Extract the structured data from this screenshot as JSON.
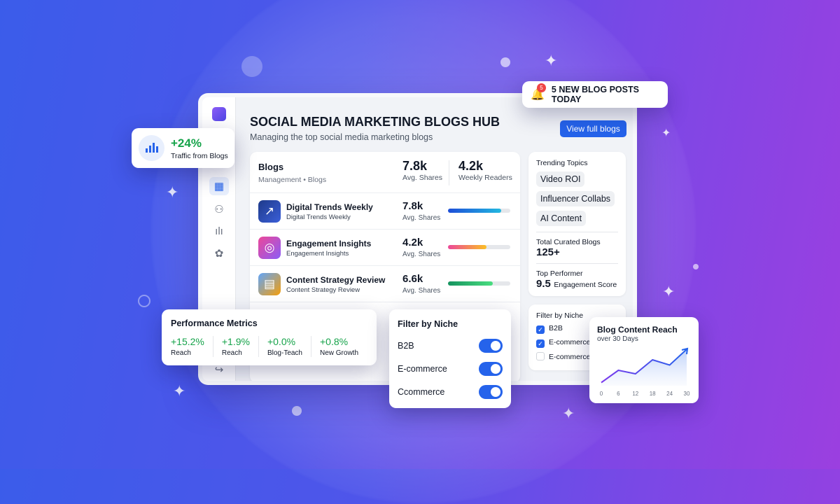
{
  "colors": {
    "accent": "#2563eb",
    "positive": "#16a34a",
    "badge": "#ef4444"
  },
  "notification": {
    "icon": "bell-icon",
    "badge": "5",
    "text": "5 NEW BLOG POSTS TODAY"
  },
  "traffic": {
    "icon": "bar-chart-icon",
    "value": "+24%",
    "label": "Traffic from Blogs"
  },
  "sidebar": {
    "items": [
      {
        "icon": "grid-icon",
        "active": true
      },
      {
        "icon": "users-icon"
      },
      {
        "icon": "chart-icon"
      },
      {
        "icon": "settings-icon"
      }
    ]
  },
  "header": {
    "title": "SOCIAL MEDIA MARKETING BLOGS HUB",
    "subtitle": "Managing the top social media marketing blogs",
    "button": "View full blogs"
  },
  "blogs": {
    "title": "Blogs",
    "breadcrumb": "Management • Blogs",
    "stats": [
      {
        "value": "7.8k",
        "label": "Avg. Shares"
      },
      {
        "value": "4.2k",
        "label": "Weekly Readers"
      }
    ],
    "rows": [
      {
        "name": "Digital Trends Weekly",
        "sub": "Digital Trends Weekly",
        "value": "7.8k",
        "label": "Avg. Shares",
        "progress": 0.85,
        "icon": "trend-up-icon"
      },
      {
        "name": "Engagement Insights",
        "sub": "Engagement Insights",
        "value": "4.2k",
        "label": "Avg. Shares",
        "progress": 0.62,
        "icon": "orbit-icon"
      },
      {
        "name": "Content Strategy Review",
        "sub": "Content Strategy Review",
        "value": "6.6k",
        "label": "Avg. Shares",
        "progress": 0.72,
        "icon": "easel-icon"
      }
    ]
  },
  "side_panel": {
    "trending_title": "Trending Topics",
    "topics": [
      "Video ROI",
      "Influencer Collabs",
      "AI Content"
    ],
    "total_label": "Total Curated Blogs",
    "total_value": "125+",
    "top_label": "Top Performer",
    "top_value": "9.5",
    "top_unit": "Engagement Score"
  },
  "filter_checks": {
    "title": "Filter by Niche",
    "items": [
      {
        "label": "B2B",
        "checked": true
      },
      {
        "label": "E-commerce",
        "checked": true
      },
      {
        "label": "E-commerce",
        "checked": false
      }
    ]
  },
  "performance": {
    "title": "Performance Metrics",
    "metrics": [
      {
        "value": "+15.2%",
        "label": "Reach"
      },
      {
        "value": "+1.9%",
        "label": "Reach"
      },
      {
        "value": "+0.0%",
        "label": "Blog-Teach"
      },
      {
        "value": "+0.8%",
        "label": "New Growth"
      }
    ]
  },
  "filter_toggles": {
    "title": "Filter by Niche",
    "items": [
      {
        "label": "B2B",
        "on": true
      },
      {
        "label": "E-commerce",
        "on": true
      },
      {
        "label": "Ccommerce",
        "on": true
      }
    ]
  },
  "chart_data": {
    "type": "area",
    "title": "Blog Content Reach",
    "subtitle": "over 30 Days",
    "x": [
      0,
      6,
      12,
      18,
      24,
      30
    ],
    "values": [
      5,
      40,
      30,
      70,
      55,
      100
    ],
    "xticks": [
      "0",
      "6",
      "12",
      "18",
      "24",
      "30"
    ],
    "grid": false
  }
}
